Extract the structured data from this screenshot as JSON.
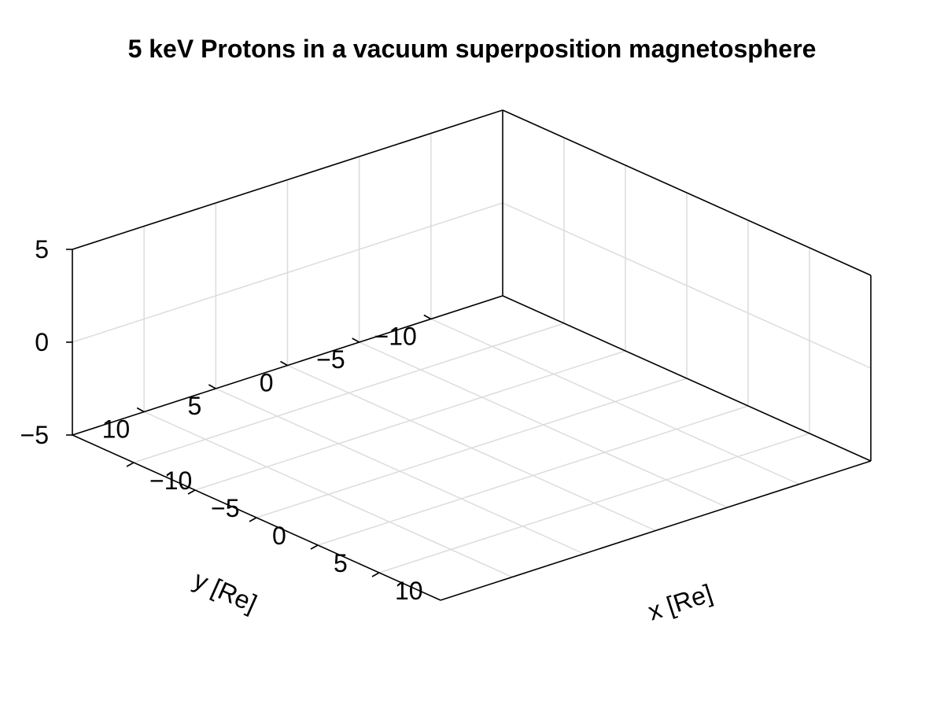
{
  "chart_data": {
    "type": "scatter",
    "title": "5 keV Protons in a vacuum superposition magnetosphere",
    "xlabel": "x [Re]",
    "ylabel": "y [Re]",
    "zlabel": "",
    "xlim": [
      -15,
      15
    ],
    "ylim": [
      -15,
      15
    ],
    "zlim": [
      -5,
      5
    ],
    "x_ticks": [
      -10,
      -5,
      0,
      5,
      10
    ],
    "y_ticks": [
      -10,
      -5,
      0,
      5,
      10
    ],
    "z_ticks": [
      -5,
      0,
      5
    ],
    "x_tick_labels": [
      "−10",
      "−5",
      "0",
      "5",
      "10"
    ],
    "y_tick_labels": [
      "−10",
      "−5",
      "0",
      "5",
      "10"
    ],
    "z_tick_labels": [
      "−5",
      "0",
      "5"
    ],
    "grid": true,
    "series": []
  }
}
